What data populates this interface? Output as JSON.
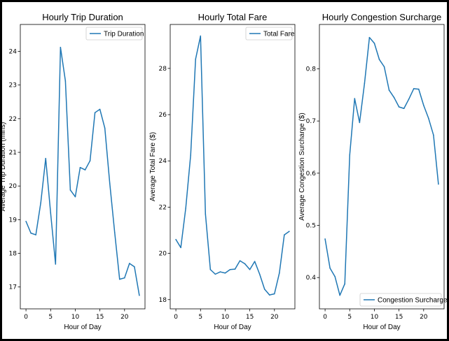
{
  "chart_data": [
    {
      "type": "line",
      "title": "Hourly Trip Duration",
      "xlabel": "Hour of Day",
      "ylabel": "Average Trip Duration (mins)",
      "xlim": [
        -1.15,
        24.15
      ],
      "ylim": [
        16.35,
        24.8
      ],
      "xticks": [
        0,
        5,
        10,
        15,
        20
      ],
      "yticks": [
        17,
        18,
        19,
        20,
        21,
        22,
        23,
        24
      ],
      "legend": "top-right",
      "series": [
        {
          "name": "Trip Duration",
          "color": "#1f77b4",
          "x": [
            0,
            1,
            2,
            3,
            4,
            5,
            6,
            7,
            8,
            9,
            10,
            11,
            12,
            13,
            14,
            15,
            16,
            17,
            18,
            19,
            20,
            21,
            22,
            23
          ],
          "values": [
            18.95,
            18.6,
            18.55,
            19.5,
            20.82,
            19.2,
            17.68,
            24.12,
            23.12,
            19.88,
            19.68,
            20.55,
            20.48,
            20.75,
            22.18,
            22.28,
            21.72,
            20.08,
            18.62,
            17.23,
            17.27,
            17.7,
            17.6,
            16.75
          ]
        }
      ]
    },
    {
      "type": "line",
      "title": "Hourly Total Fare",
      "xlabel": "Hour of Day",
      "ylabel": "Average Total Fare ($)",
      "xlim": [
        -1.15,
        24.15
      ],
      "ylim": [
        17.6,
        29.9
      ],
      "xticks": [
        0,
        5,
        10,
        15,
        20
      ],
      "yticks": [
        18,
        20,
        22,
        24,
        26,
        28
      ],
      "legend": "top-right",
      "series": [
        {
          "name": "Total Fare",
          "color": "#1f77b4",
          "x": [
            0,
            1,
            2,
            3,
            4,
            5,
            6,
            7,
            8,
            9,
            10,
            11,
            12,
            13,
            14,
            15,
            16,
            17,
            18,
            19,
            20,
            21,
            22,
            23
          ],
          "values": [
            20.6,
            20.25,
            21.95,
            24.25,
            28.4,
            29.4,
            21.7,
            19.3,
            19.1,
            19.2,
            19.15,
            19.3,
            19.32,
            19.68,
            19.55,
            19.3,
            19.65,
            19.1,
            18.45,
            18.2,
            18.25,
            19.15,
            20.8,
            20.95
          ]
        }
      ]
    },
    {
      "type": "line",
      "title": "Hourly Congestion Surcharge",
      "xlabel": "Hour of Day",
      "ylabel": "Average Congestion Surcharge ($)",
      "xlim": [
        -1.15,
        24.15
      ],
      "ylim": [
        0.34,
        0.885
      ],
      "xticks": [
        0,
        5,
        10,
        15,
        20
      ],
      "yticks": [
        0.4,
        0.5,
        0.6,
        0.7,
        0.8
      ],
      "legend": "bottom-right",
      "series": [
        {
          "name": "Congestion Surcharge",
          "color": "#1f77b4",
          "x": [
            0,
            1,
            2,
            3,
            4,
            5,
            6,
            7,
            8,
            9,
            10,
            11,
            12,
            13,
            14,
            15,
            16,
            17,
            18,
            19,
            20,
            21,
            22,
            23
          ],
          "values": [
            0.474,
            0.418,
            0.402,
            0.366,
            0.388,
            0.635,
            0.743,
            0.697,
            0.772,
            0.86,
            0.849,
            0.818,
            0.804,
            0.759,
            0.745,
            0.727,
            0.724,
            0.742,
            0.762,
            0.761,
            0.73,
            0.705,
            0.673,
            0.579
          ]
        }
      ]
    }
  ]
}
